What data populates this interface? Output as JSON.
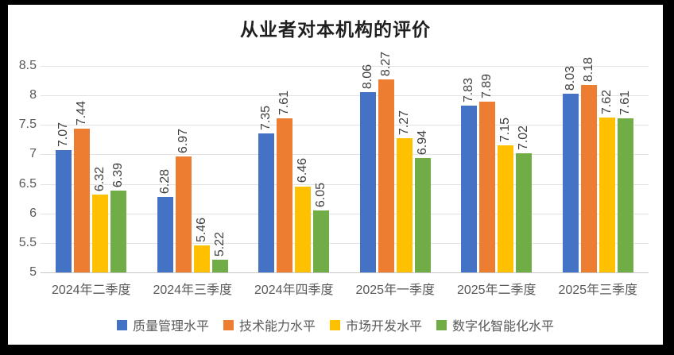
{
  "chart_data": {
    "type": "bar",
    "title": "从业者对本机构的评价",
    "categories": [
      "2024年二季度",
      "2024年三季度",
      "2024年四季度",
      "2025年一季度",
      "2025年二季度",
      "2025年三季度"
    ],
    "series": [
      {
        "name": "质量管理水平",
        "color": "#4472C4",
        "values": [
          7.07,
          6.28,
          7.35,
          8.06,
          7.83,
          8.03
        ]
      },
      {
        "name": "技术能力水平",
        "color": "#ED7D31",
        "values": [
          7.44,
          6.97,
          7.61,
          8.27,
          7.89,
          8.18
        ]
      },
      {
        "name": "市场开发水平",
        "color": "#FFC000",
        "values": [
          6.32,
          5.46,
          6.46,
          7.27,
          7.15,
          7.62
        ]
      },
      {
        "name": "数字化智能化水平",
        "color": "#70AD47",
        "values": [
          6.39,
          5.22,
          6.05,
          6.94,
          7.02,
          7.61
        ]
      }
    ],
    "data_labels": {
      "shown": true,
      "decimals": 2,
      "rotation": "vertical-bottom-to-top",
      "color": "#404040"
    },
    "yaxis": {
      "min": 5,
      "max": 8.5,
      "step": 0.5,
      "ticks": [
        "8.5",
        "8",
        "7.5",
        "7",
        "6.5",
        "6",
        "5.5",
        "5"
      ]
    },
    "xlabel": "",
    "ylabel": "",
    "grid": true,
    "legend_position": "bottom",
    "colors": {
      "gridline": "#e2e2e2",
      "axis_line": "#c6c6c6",
      "tick_text": "#595959",
      "title_text": "#1f1f1f",
      "frame": "#000000",
      "background": "#ffffff"
    }
  }
}
